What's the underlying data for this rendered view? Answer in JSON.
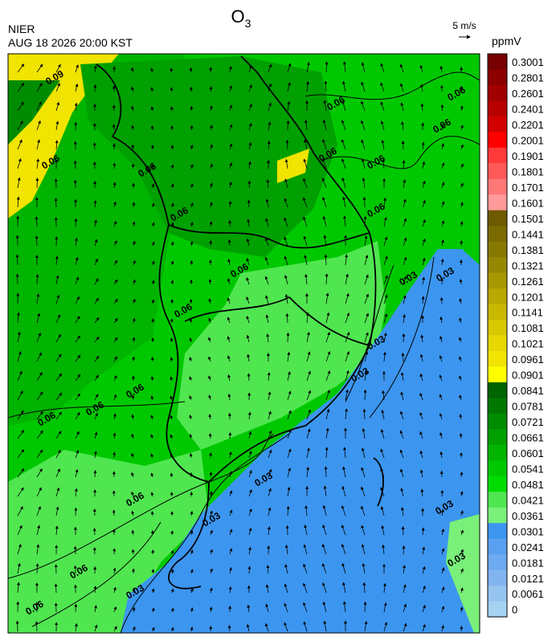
{
  "header": {
    "title": "O",
    "title_subscript": "3",
    "agency": "NIER",
    "datetime": "AUG 18 2026 20:00 KST",
    "wind_scale": "5 m/s",
    "unit": "ppmV"
  },
  "contour_labels": [
    "0.06",
    "0.03",
    "0.09"
  ],
  "colorbar": [
    {
      "label": "0.3001",
      "color": "#780000"
    },
    {
      "label": "0.2801",
      "color": "#8c0000"
    },
    {
      "label": "0.2601",
      "color": "#a00000"
    },
    {
      "label": "0.2401",
      "color": "#b80000"
    },
    {
      "label": "0.2201",
      "color": "#d20000"
    },
    {
      "label": "0.2001",
      "color": "#ff0000"
    },
    {
      "label": "0.1901",
      "color": "#ff3a3a"
    },
    {
      "label": "0.1801",
      "color": "#ff5a5a"
    },
    {
      "label": "0.1701",
      "color": "#ff7878"
    },
    {
      "label": "0.1601",
      "color": "#ff9a9a"
    },
    {
      "label": "0.1501",
      "color": "#6e5a00"
    },
    {
      "label": "0.1441",
      "color": "#7a6a00"
    },
    {
      "label": "0.1381",
      "color": "#877800"
    },
    {
      "label": "0.1321",
      "color": "#968800"
    },
    {
      "label": "0.1261",
      "color": "#a89800"
    },
    {
      "label": "0.1201",
      "color": "#b8a800"
    },
    {
      "label": "0.1141",
      "color": "#c8b800"
    },
    {
      "label": "0.1081",
      "color": "#d8c800"
    },
    {
      "label": "0.1021",
      "color": "#e6d800"
    },
    {
      "label": "0.0961",
      "color": "#f0e400"
    },
    {
      "label": "0.0901",
      "color": "#ffff00"
    },
    {
      "label": "0.0841",
      "color": "#006400"
    },
    {
      "label": "0.0781",
      "color": "#007800"
    },
    {
      "label": "0.0721",
      "color": "#008c00"
    },
    {
      "label": "0.0661",
      "color": "#00a000"
    },
    {
      "label": "0.0601",
      "color": "#00b400"
    },
    {
      "label": "0.0541",
      "color": "#00c800"
    },
    {
      "label": "0.0481",
      "color": "#00dc00"
    },
    {
      "label": "0.0421",
      "color": "#50e650"
    },
    {
      "label": "0.0361",
      "color": "#7af07a"
    },
    {
      "label": "0.0301",
      "color": "#3c96f0"
    },
    {
      "label": "0.0241",
      "color": "#5aa0f0"
    },
    {
      "label": "0.0181",
      "color": "#6eaaf0"
    },
    {
      "label": "0.0121",
      "color": "#82b4f0"
    },
    {
      "label": "0.0061",
      "color": "#96c4f0"
    },
    {
      "label": "0",
      "color": "#a4d2f0"
    }
  ]
}
